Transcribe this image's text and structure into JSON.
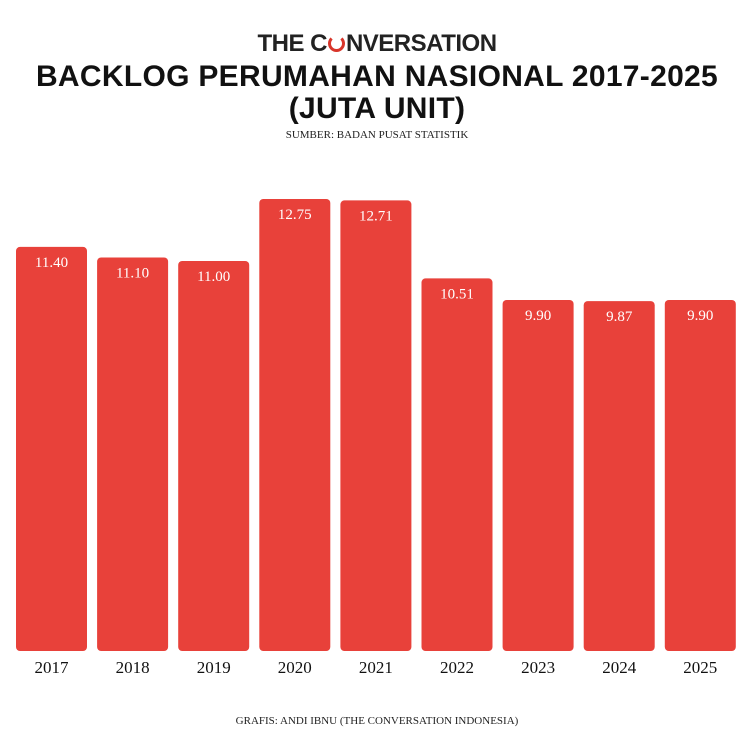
{
  "brand": {
    "logo_prefix": "THE C",
    "logo_suffix": "NVERSATION",
    "accent_color": "#e8413a"
  },
  "header": {
    "title_line1": "BACKLOG PERUMAHAN NASIONAL 2017-2025",
    "title_line2": "(JUTA UNIT)",
    "source": "SUMBER: BADAN PUSAT STATISTIK"
  },
  "footer": {
    "credit": "GRAFIS: ANDI IBNU (THE CONVERSATION INDONESIA)"
  },
  "chart_data": {
    "type": "bar",
    "title": "BACKLOG PERUMAHAN NASIONAL 2017-2025 (JUTA UNIT)",
    "categories": [
      "2017",
      "2018",
      "2019",
      "2020",
      "2021",
      "2022",
      "2023",
      "2024",
      "2025"
    ],
    "values": [
      11.4,
      11.1,
      11.0,
      12.75,
      12.71,
      10.51,
      9.9,
      9.87,
      9.9
    ],
    "value_labels": [
      "11.40",
      "11.10",
      "11.00",
      "12.75",
      "12.71",
      "10.51",
      "9.90",
      "9.87",
      "9.90"
    ],
    "xlabel": "",
    "ylabel": "",
    "ylim": [
      0,
      13
    ],
    "grid": false,
    "legend": "none",
    "bar_color": "#e8413a"
  }
}
